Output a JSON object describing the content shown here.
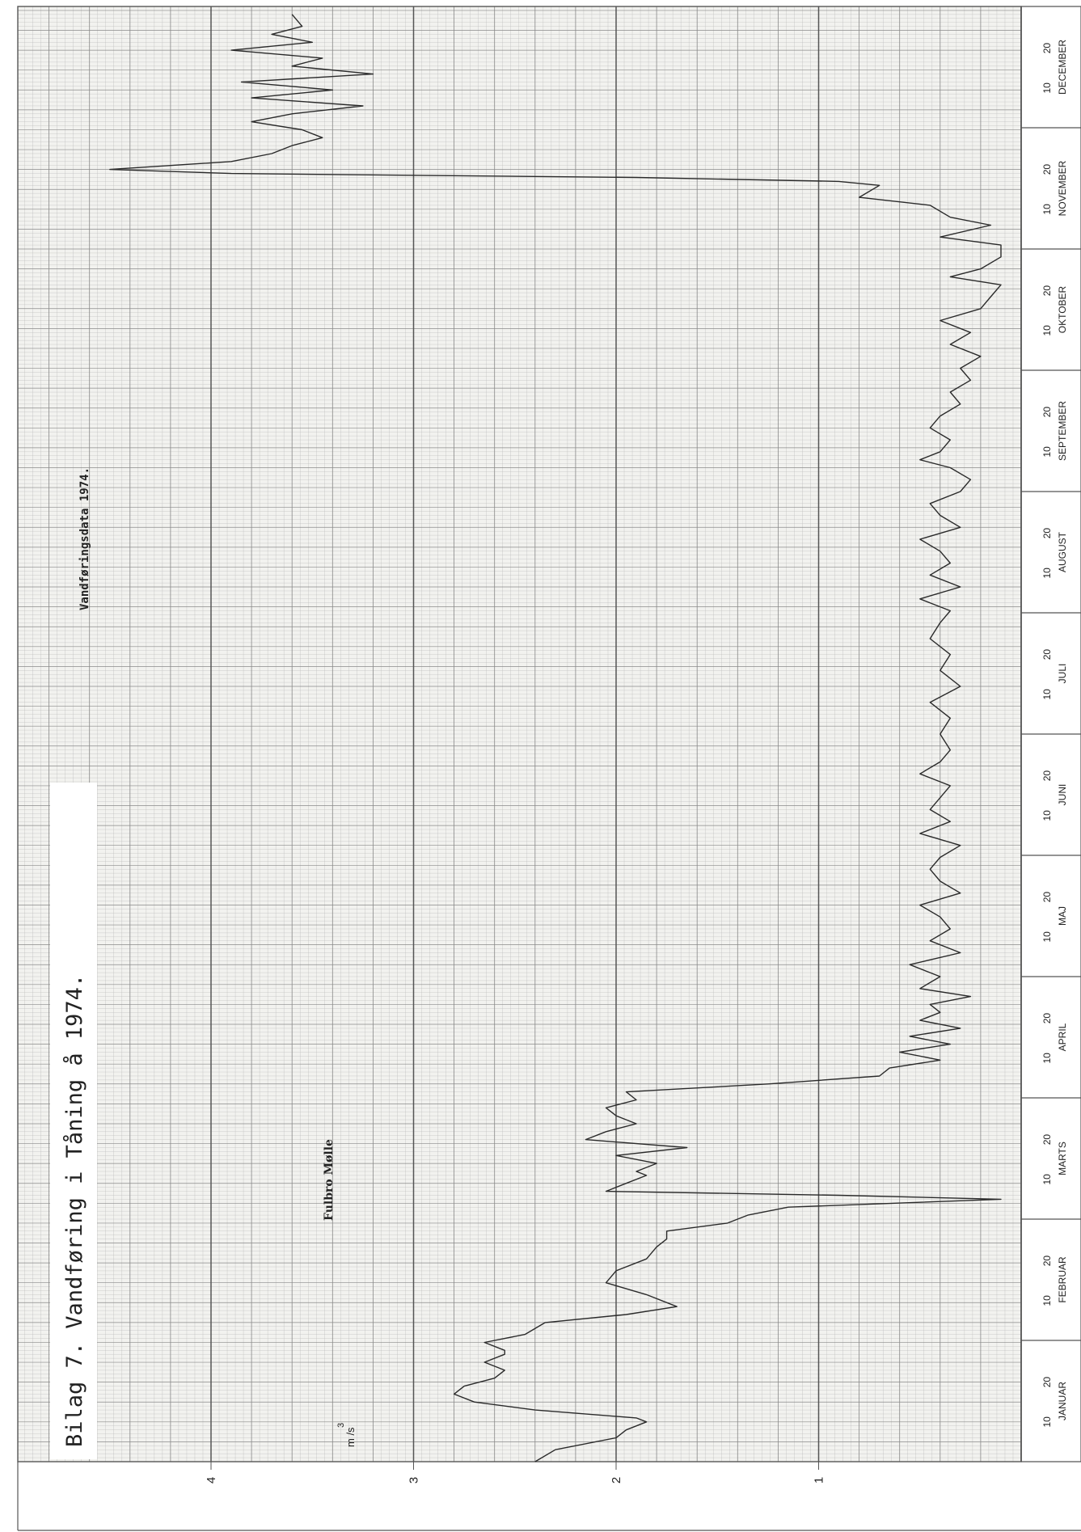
{
  "title": "Bilag 7.  Vandføring i Tåning å 1974.",
  "station": "Fulbro Mølle",
  "subtitle": "Vandføringsdata 1974.",
  "unit_label": {
    "exp": "3",
    "unit": "m /s"
  },
  "y_ticks": [
    "1",
    "2",
    "3",
    "4"
  ],
  "months": [
    {
      "name": "JANUAR",
      "d10": "10",
      "d20": "20"
    },
    {
      "name": "FEBRUAR",
      "d10": "10",
      "d20": "20"
    },
    {
      "name": "MARTS",
      "d10": "10",
      "d20": "20"
    },
    {
      "name": "APRIL",
      "d10": "10",
      "d20": "20"
    },
    {
      "name": "MAJ",
      "d10": "10",
      "d20": "20"
    },
    {
      "name": "JUNI",
      "d10": "10",
      "d20": "20"
    },
    {
      "name": "JULI",
      "d10": "10",
      "d20": "20"
    },
    {
      "name": "AUGUST",
      "d10": "10",
      "d20": "20"
    },
    {
      "name": "SEPTEMBER",
      "d10": "10",
      "d20": "20"
    },
    {
      "name": "OKTOBER",
      "d10": "10",
      "d20": "20"
    },
    {
      "name": "NOVEMBER",
      "d10": "10",
      "d20": "20"
    },
    {
      "name": "DECEMBER",
      "d10": "10",
      "d20": "20"
    }
  ],
  "chart_data": {
    "type": "line",
    "title": "Vandføring i Tåning å 1974.",
    "xlabel": "",
    "ylabel": "m3/s",
    "ylim": [
      0,
      4.6
    ],
    "xlim": [
      "1974-01-01",
      "1974-12-31"
    ],
    "grid": true,
    "series": [
      {
        "name": "Fulbro Mølle",
        "x": [
          "1974-01-01",
          "1974-01-04",
          "1974-01-07",
          "1974-01-09",
          "1974-01-11",
          "1974-01-12",
          "1974-01-14",
          "1974-01-16",
          "1974-01-18",
          "1974-01-20",
          "1974-01-22",
          "1974-01-24",
          "1974-01-26",
          "1974-01-28",
          "1974-01-29",
          "1974-01-31",
          "1974-02-02",
          "1974-02-05",
          "1974-02-07",
          "1974-02-09",
          "1974-02-12",
          "1974-02-15",
          "1974-02-18",
          "1974-02-21",
          "1974-02-24",
          "1974-02-26",
          "1974-02-28",
          "1974-03-02",
          "1974-03-04",
          "1974-03-06",
          "1974-03-08",
          "1974-03-09",
          "1974-03-10",
          "1974-03-12",
          "1974-03-14",
          "1974-03-15",
          "1974-03-17",
          "1974-03-19",
          "1974-03-21",
          "1974-03-23",
          "1974-03-25",
          "1974-03-27",
          "1974-03-29",
          "1974-03-31",
          "1974-04-02",
          "1974-04-04",
          "1974-04-06",
          "1974-04-08",
          "1974-04-10",
          "1974-04-12",
          "1974-04-14",
          "1974-04-16",
          "1974-04-18",
          "1974-04-20",
          "1974-04-22",
          "1974-04-24",
          "1974-04-26",
          "1974-04-28",
          "1974-04-30",
          "1974-05-03",
          "1974-05-06",
          "1974-05-09",
          "1974-05-12",
          "1974-05-15",
          "1974-05-18",
          "1974-05-21",
          "1974-05-24",
          "1974-05-27",
          "1974-05-30",
          "1974-06-02",
          "1974-06-05",
          "1974-06-08",
          "1974-06-11",
          "1974-06-14",
          "1974-06-17",
          "1974-06-20",
          "1974-06-23",
          "1974-06-26",
          "1974-06-29",
          "1974-07-03",
          "1974-07-07",
          "1974-07-11",
          "1974-07-15",
          "1974-07-19",
          "1974-07-23",
          "1974-07-27",
          "1974-07-31",
          "1974-08-03",
          "1974-08-06",
          "1974-08-09",
          "1974-08-12",
          "1974-08-15",
          "1974-08-18",
          "1974-08-21",
          "1974-08-24",
          "1974-08-27",
          "1974-08-30",
          "1974-09-02",
          "1974-09-05",
          "1974-09-08",
          "1974-09-10",
          "1974-09-12",
          "1974-09-15",
          "1974-09-18",
          "1974-09-21",
          "1974-09-24",
          "1974-09-27",
          "1974-09-30",
          "1974-10-03",
          "1974-10-06",
          "1974-10-09",
          "1974-10-12",
          "1974-10-15",
          "1974-10-18",
          "1974-10-21",
          "1974-10-24",
          "1974-10-26",
          "1974-10-28",
          "1974-10-31",
          "1974-11-03",
          "1974-11-05",
          "1974-11-08",
          "1974-11-10",
          "1974-11-13",
          "1974-11-15",
          "1974-11-18",
          "1974-11-19",
          "1974-11-20",
          "1974-11-21",
          "1974-11-22",
          "1974-11-24",
          "1974-11-26",
          "1974-11-28",
          "1974-11-30",
          "1974-12-02",
          "1974-12-04",
          "1974-12-06",
          "1974-12-08",
          "1974-12-10",
          "1974-12-12",
          "1974-12-14",
          "1974-12-16",
          "1974-12-18",
          "1974-12-20",
          "1974-12-22",
          "1974-12-24",
          "1974-12-26",
          "1974-12-28",
          "1974-12-31"
        ],
        "y": [
          2.4,
          2.3,
          2.0,
          1.95,
          1.85,
          1.9,
          2.4,
          2.7,
          2.8,
          2.75,
          2.6,
          2.55,
          2.65,
          2.55,
          2.55,
          2.65,
          2.45,
          2.35,
          1.95,
          1.7,
          1.85,
          2.05,
          2.0,
          1.85,
          1.8,
          1.75,
          1.75,
          1.45,
          1.35,
          1.15,
          0.1,
          0.9,
          2.05,
          1.95,
          1.85,
          1.9,
          1.8,
          2.0,
          1.65,
          2.15,
          2.05,
          1.9,
          2.0,
          2.05,
          1.9,
          1.95,
          1.25,
          0.7,
          0.65,
          0.4,
          0.6,
          0.35,
          0.55,
          0.3,
          0.5,
          0.4,
          0.45,
          0.25,
          0.5,
          0.4,
          0.55,
          0.3,
          0.45,
          0.35,
          0.4,
          0.5,
          0.3,
          0.4,
          0.45,
          0.4,
          0.3,
          0.5,
          0.35,
          0.45,
          0.4,
          0.35,
          0.5,
          0.4,
          0.35,
          0.4,
          0.35,
          0.45,
          0.3,
          0.4,
          0.35,
          0.45,
          0.4,
          0.35,
          0.5,
          0.3,
          0.45,
          0.35,
          0.4,
          0.5,
          0.3,
          0.4,
          0.45,
          0.3,
          0.25,
          0.35,
          0.5,
          0.4,
          0.35,
          0.45,
          0.4,
          0.3,
          0.35,
          0.25,
          0.3,
          0.2,
          0.35,
          0.25,
          0.4,
          0.2,
          0.15,
          0.1,
          0.35,
          0.2,
          0.1,
          0.1,
          0.4,
          0.15,
          0.35,
          0.45,
          0.8,
          0.7,
          0.9,
          1.9,
          3.9,
          4.5,
          3.9,
          3.7,
          3.6,
          3.45,
          3.55,
          3.8,
          3.6,
          3.25,
          3.8,
          3.4,
          3.85,
          3.2,
          3.6,
          3.45,
          3.9,
          3.5,
          3.7,
          3.55,
          3.6
        ]
      }
    ]
  }
}
